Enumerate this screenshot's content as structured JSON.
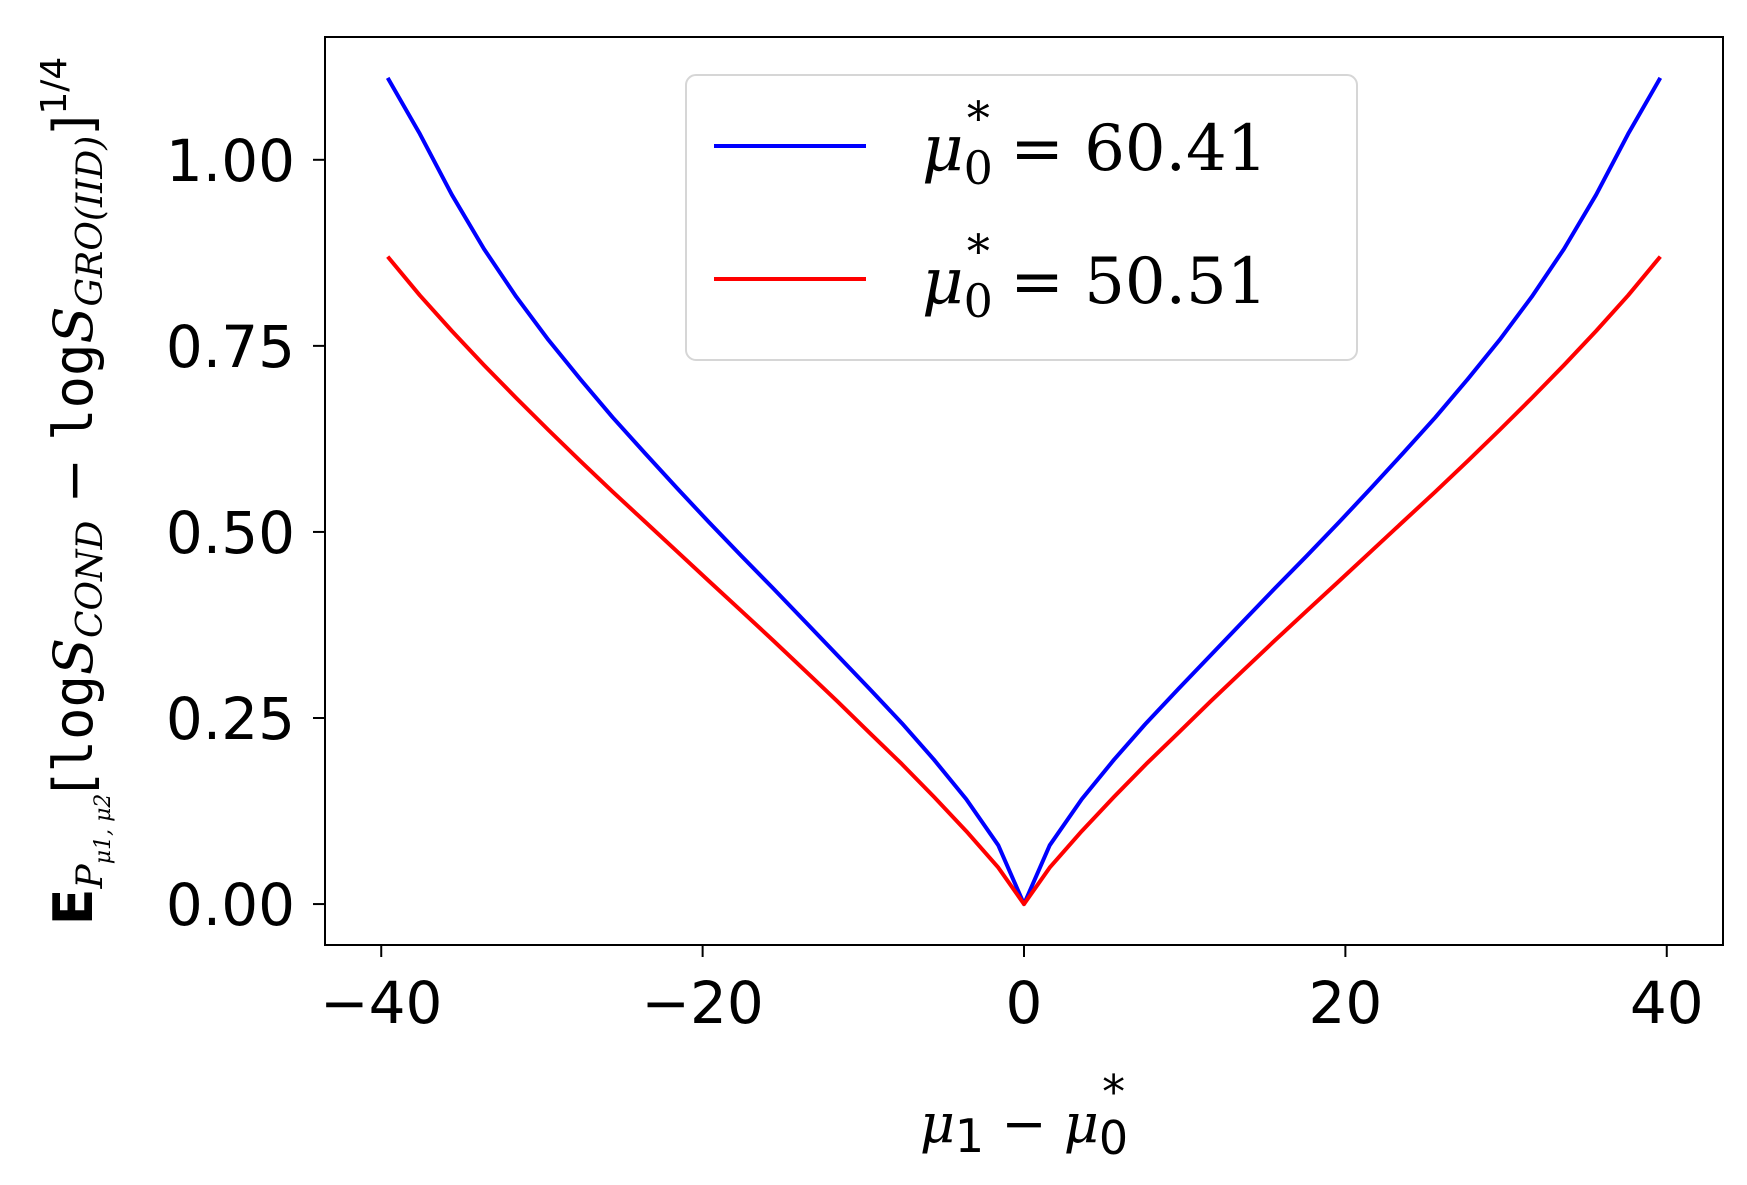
{
  "chart_data": {
    "type": "line",
    "title": "",
    "xlabel": {
      "parts": [
        "μ",
        "1",
        " − ",
        "μ",
        "0",
        "*"
      ]
    },
    "ylabel": {
      "parts": [
        "E",
        "P",
        "μ1, μ2",
        "[",
        "log",
        "S",
        "COND",
        " − ",
        "log",
        "S",
        "GRO(IID)",
        "]",
        "1/4"
      ]
    },
    "xlim": [
      -43.5,
      43.5
    ],
    "ylim": [
      -0.055,
      1.165
    ],
    "xticks": [
      -40,
      -20,
      0,
      20,
      40
    ],
    "xtick_labels": [
      "−40",
      "−20",
      "0",
      "20",
      "40"
    ],
    "yticks": [
      0,
      0.25,
      0.5,
      0.75,
      1.0
    ],
    "ytick_labels": [
      "0.00",
      "0.25",
      "0.50",
      "0.75",
      "1.00"
    ],
    "grid": false,
    "legend_position": "top-center",
    "series": [
      {
        "name": "μ0* = 60.41",
        "legend": {
          "sym": "μ",
          "sub": "0",
          "sup": "*",
          "eq": " = 60.41"
        },
        "color": "#0000ff",
        "x": [
          -39.6,
          -37.6,
          -35.6,
          -33.6,
          -31.6,
          -29.6,
          -27.6,
          -25.6,
          -23.6,
          -21.6,
          -19.6,
          -17.6,
          -15.6,
          -13.6,
          -11.6,
          -9.6,
          -7.6,
          -5.6,
          -3.6,
          -1.6,
          0,
          1.6,
          3.6,
          5.6,
          7.6,
          9.6,
          11.6,
          13.6,
          15.6,
          17.6,
          19.6,
          21.6,
          23.6,
          25.6,
          27.6,
          29.6,
          31.6,
          33.6,
          35.6,
          37.6,
          39.6
        ],
        "y": [
          1.11,
          1.035,
          0.953,
          0.88,
          0.816,
          0.758,
          0.705,
          0.654,
          0.606,
          0.559,
          0.513,
          0.468,
          0.424,
          0.379,
          0.334,
          0.289,
          0.243,
          0.194,
          0.141,
          0.079,
          0.0,
          0.079,
          0.141,
          0.194,
          0.243,
          0.289,
          0.334,
          0.379,
          0.424,
          0.468,
          0.513,
          0.559,
          0.606,
          0.654,
          0.705,
          0.758,
          0.816,
          0.88,
          0.953,
          1.035,
          1.11
        ]
      },
      {
        "name": "μ0* = 50.51",
        "legend": {
          "sym": "μ",
          "sub": "0",
          "sup": "*",
          "eq": " = 50.51"
        },
        "color": "#ff0000",
        "x": [
          -39.6,
          -37.6,
          -35.6,
          -33.6,
          -31.6,
          -29.6,
          -27.6,
          -25.6,
          -23.6,
          -21.6,
          -19.6,
          -17.6,
          -15.6,
          -13.6,
          -11.6,
          -9.6,
          -7.6,
          -5.6,
          -3.6,
          -1.6,
          0,
          1.6,
          3.6,
          5.6,
          7.6,
          9.6,
          11.6,
          13.6,
          15.6,
          17.6,
          19.6,
          21.6,
          23.6,
          25.6,
          27.6,
          29.6,
          31.6,
          33.6,
          35.6,
          37.6,
          39.6
        ],
        "y": [
          0.87,
          0.818,
          0.77,
          0.724,
          0.68,
          0.637,
          0.595,
          0.554,
          0.514,
          0.474,
          0.434,
          0.394,
          0.354,
          0.313,
          0.272,
          0.23,
          0.188,
          0.144,
          0.098,
          0.049,
          0.0,
          0.049,
          0.098,
          0.144,
          0.188,
          0.23,
          0.272,
          0.313,
          0.354,
          0.394,
          0.434,
          0.474,
          0.514,
          0.554,
          0.595,
          0.637,
          0.68,
          0.724,
          0.77,
          0.818,
          0.87
        ]
      }
    ]
  }
}
